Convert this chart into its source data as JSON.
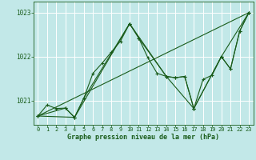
{
  "title": "Graphe pression niveau de la mer (hPa)",
  "bg_color": "#c2e8e8",
  "grid_color": "#ffffff",
  "line_color": "#1a5c1a",
  "xlim": [
    -0.5,
    23.5
  ],
  "ylim": [
    1020.45,
    1023.25
  ],
  "yticks": [
    1021,
    1022,
    1023
  ],
  "xticks": [
    0,
    1,
    2,
    3,
    4,
    5,
    6,
    7,
    8,
    9,
    10,
    11,
    12,
    13,
    14,
    15,
    16,
    17,
    18,
    19,
    20,
    21,
    22,
    23
  ],
  "series1_x": [
    0,
    1,
    2,
    3,
    4,
    5,
    6,
    7,
    8,
    9,
    10,
    11,
    12,
    13,
    14,
    15,
    16,
    17,
    18,
    19,
    20,
    21,
    22,
    23
  ],
  "series1_y": [
    1020.65,
    1020.9,
    1020.82,
    1020.83,
    1020.62,
    1021.05,
    1021.62,
    1021.85,
    1022.1,
    1022.35,
    1022.75,
    1022.42,
    1021.97,
    1021.62,
    1021.55,
    1021.52,
    1021.55,
    1020.82,
    1021.48,
    1021.58,
    1022.0,
    1021.72,
    1022.58,
    1023.0
  ],
  "series2_x": [
    0,
    3,
    4,
    5,
    10,
    11,
    14,
    15,
    16,
    17,
    20,
    21,
    22,
    23
  ],
  "series2_y": [
    1020.65,
    1020.83,
    1020.62,
    1021.05,
    1022.75,
    1022.42,
    1021.55,
    1021.52,
    1021.55,
    1020.82,
    1022.0,
    1021.72,
    1022.58,
    1023.0
  ],
  "series3_x": [
    0,
    4,
    10,
    14,
    17,
    20,
    23
  ],
  "series3_y": [
    1020.65,
    1020.62,
    1022.75,
    1021.55,
    1020.82,
    1022.0,
    1023.0
  ],
  "series4_x": [
    0,
    23
  ],
  "series4_y": [
    1020.65,
    1023.0
  ]
}
